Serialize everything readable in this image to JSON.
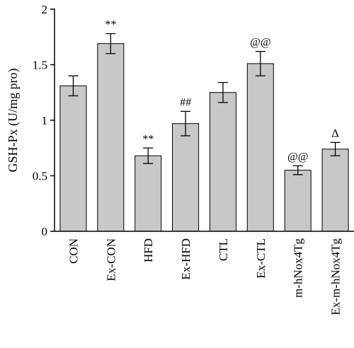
{
  "chart_data": {
    "type": "bar",
    "title": "",
    "xlabel": "",
    "ylabel": "GSH-Px (U/mg pro)",
    "ylim": [
      0,
      2
    ],
    "yticks": [
      "0",
      "0.5",
      "1",
      "1.5",
      "2"
    ],
    "grid": false,
    "categories": [
      "CON",
      "Ex-CON",
      "HFD",
      "Ex-HFD",
      "CTL",
      "Ex-CTL",
      "m-hNox4Tg",
      "Ex-m-hNox4Tg"
    ],
    "values": [
      1.31,
      1.69,
      0.68,
      0.97,
      1.25,
      1.51,
      0.55,
      0.74
    ],
    "errors": [
      0.09,
      0.09,
      0.07,
      0.11,
      0.09,
      0.11,
      0.04,
      0.06
    ],
    "annotations": [
      "",
      "**",
      "**",
      "##",
      "",
      "@@",
      "@@",
      "Δ"
    ],
    "bar_color": "#c8c8c8",
    "edge_color": "#000000"
  }
}
